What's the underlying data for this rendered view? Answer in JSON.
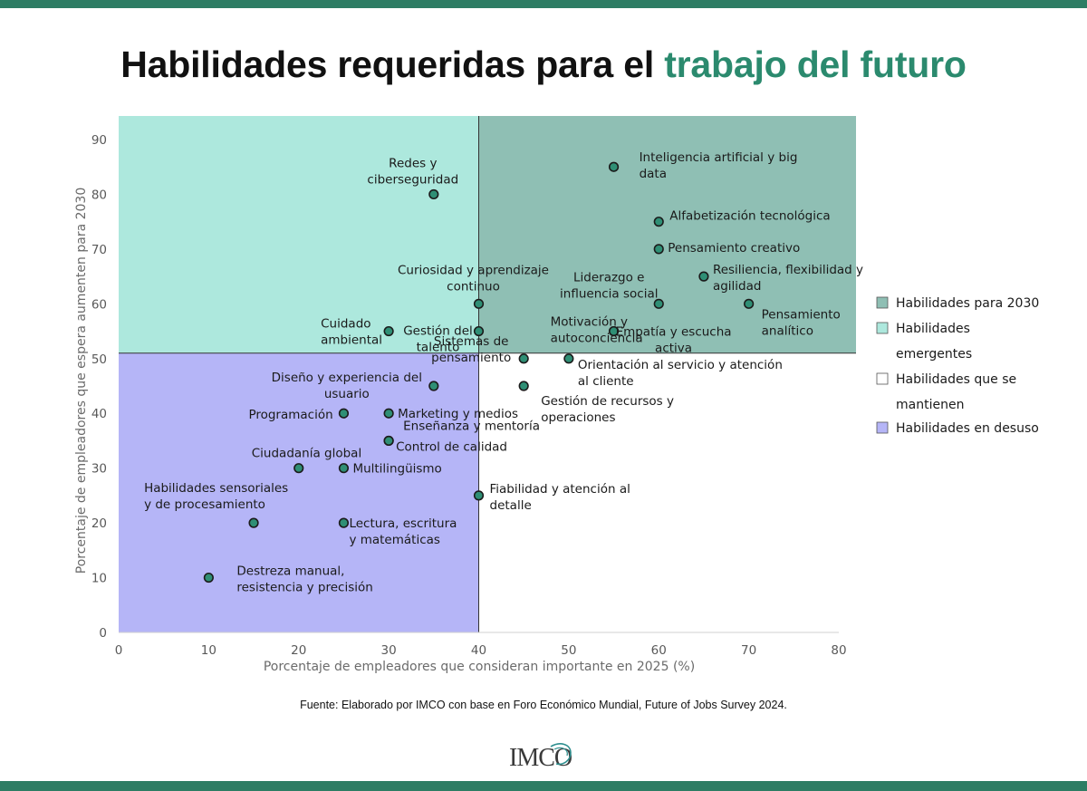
{
  "title": {
    "part1": "Habilidades requeridas para el ",
    "accent": "trabajo del futuro"
  },
  "colors": {
    "brand_bar": "#2e7d64",
    "title_accent": "#2b8a6e",
    "q_2030": "#8fbfb4",
    "q_emergentes": "#ade8dd",
    "q_mantienen": "#ffffff",
    "q_desuso": "#b5b5f7",
    "point_fill": "#2f8f75",
    "point_stroke": "#1b1b1b"
  },
  "chart_data": {
    "type": "scatter",
    "xlabel": "Porcentaje de empleadores que  consideran importante en 2025 (%)",
    "ylabel": "Porcentaje de empleadores que espera aumenten  para 2030",
    "xlim": [
      0,
      80
    ],
    "ylim": [
      0,
      90
    ],
    "xticks": [
      "0",
      "10",
      "20",
      "30",
      "40",
      "50",
      "60",
      "70",
      "80"
    ],
    "yticks": [
      "0",
      "10",
      "20",
      "30",
      "40",
      "50",
      "60",
      "70",
      "80",
      "90"
    ],
    "quadrant_split": {
      "x": 40,
      "y": 51
    },
    "legend": [
      {
        "label": "Habilidades para 2030",
        "color_key": "q_2030"
      },
      {
        "label": "Habilidades emergentes",
        "color_key": "q_emergentes"
      },
      {
        "label": "Habilidades que se mantienen",
        "color_key": "q_mantienen"
      },
      {
        "label": "Habilidades en desuso",
        "color_key": "q_desuso"
      }
    ],
    "points": [
      {
        "lines": [
          "Inteligencia artificial y big",
          "data"
        ],
        "x": 55,
        "y": 85
      },
      {
        "lines": [
          "Redes y",
          "ciberseguridad"
        ],
        "x": 35,
        "y": 80
      },
      {
        "lines": [
          "Alfabetización tecnológica"
        ],
        "x": 60,
        "y": 75
      },
      {
        "lines": [
          "Pensamiento creativo"
        ],
        "x": 60,
        "y": 70
      },
      {
        "lines": [
          "Resiliencia, flexibilidad y",
          "agilidad"
        ],
        "x": 65,
        "y": 65
      },
      {
        "lines": [
          "Liderazgo e",
          "influencia social"
        ],
        "x": 60,
        "y": 60
      },
      {
        "lines": [
          "Curiosidad y aprendizaje",
          "continuo"
        ],
        "x": 40,
        "y": 60
      },
      {
        "lines": [
          "Pensamiento",
          "analítico"
        ],
        "x": 70,
        "y": 60
      },
      {
        "lines": [
          "Cuidado",
          "ambiental"
        ],
        "x": 30,
        "y": 55
      },
      {
        "lines": [
          "Gestión del",
          "talento"
        ],
        "x": 40,
        "y": 55
      },
      {
        "lines": [
          "Motivación y",
          "autoconciencia"
        ],
        "x": 55,
        "y": 55
      },
      {
        "lines": [
          "Empatía y escucha",
          "activa"
        ],
        "x": 55,
        "y": 55
      },
      {
        "lines": [
          "Sistemas de",
          "pensamiento"
        ],
        "x": 45,
        "y": 50
      },
      {
        "lines": [
          "Orientación al servicio y atención",
          "al cliente"
        ],
        "x": 50,
        "y": 50
      },
      {
        "lines": [
          "Diseño y experiencia del",
          "usuario"
        ],
        "x": 35,
        "y": 45
      },
      {
        "lines": [
          "Gestión de recursos y",
          "operaciones"
        ],
        "x": 45,
        "y": 45
      },
      {
        "lines": [
          "Programación"
        ],
        "x": 25,
        "y": 40
      },
      {
        "lines": [
          "Marketing y medios"
        ],
        "x": 30,
        "y": 40
      },
      {
        "lines": [
          "Enseñanza y mentoría"
        ],
        "x": 30,
        "y": 35
      },
      {
        "lines": [
          "Control de calidad"
        ],
        "x": 30,
        "y": 35
      },
      {
        "lines": [
          "Ciudadanía global"
        ],
        "x": 20,
        "y": 30
      },
      {
        "lines": [
          "Multilingüismo"
        ],
        "x": 25,
        "y": 30
      },
      {
        "lines": [
          "Fiabilidad y atención al",
          "detalle"
        ],
        "x": 40,
        "y": 25
      },
      {
        "lines": [
          "Habilidades sensoriales",
          "y de procesamiento"
        ],
        "x": 15,
        "y": 20
      },
      {
        "lines": [
          "Lectura, escritura",
          "y matemáticas"
        ],
        "x": 25,
        "y": 20
      },
      {
        "lines": [
          "Destreza manual,",
          "resistencia y precisión"
        ],
        "x": 10,
        "y": 10
      }
    ]
  },
  "source": "Fuente: Elaborado por IMCO con base en Foro Económico Mundial, Future of Jobs Survey 2024.",
  "logo": {
    "text": "IMCO"
  }
}
